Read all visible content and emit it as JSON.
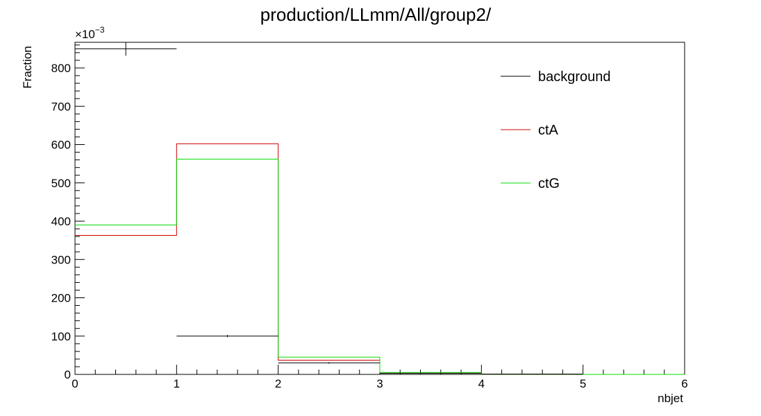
{
  "chart_data": {
    "type": "histogram",
    "title": "production/LLmm/All/group2/",
    "xlabel": "nbjet",
    "ylabel": "Fraction",
    "y_exponent_label": "×10",
    "y_exponent_power": "−3",
    "xlim": [
      0,
      6
    ],
    "ylim": [
      0,
      867
    ],
    "x_ticks": [
      "0",
      "1",
      "2",
      "3",
      "4",
      "5",
      "6"
    ],
    "y_ticks": [
      "0",
      "100",
      "200",
      "300",
      "400",
      "500",
      "600",
      "700",
      "800"
    ],
    "bin_edges": [
      0,
      1,
      2,
      3,
      4,
      5,
      6
    ],
    "series": [
      {
        "name": "background",
        "color": "#000000",
        "values": [
          850,
          100,
          30,
          3,
          1,
          0
        ],
        "errors": [
          18,
          3,
          2,
          1,
          0.5,
          0
        ]
      },
      {
        "name": "ctA",
        "color": "#cc0000",
        "values": [
          363,
          602,
          37,
          3,
          0.5,
          0
        ]
      },
      {
        "name": "ctG",
        "color": "#00dd00",
        "values": [
          390,
          562,
          45,
          5,
          0.5,
          0
        ]
      }
    ],
    "legend_position": "top-right",
    "grid": false
  }
}
